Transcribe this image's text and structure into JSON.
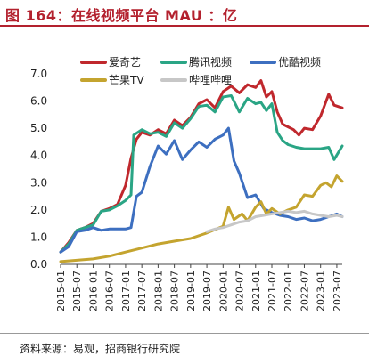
{
  "figure": {
    "title": "图 164：在线视频平台 MAU ：亿",
    "source": "资料来源：易观，招商银行研究院"
  },
  "chart_data": {
    "type": "line",
    "ylim": [
      0,
      7
    ],
    "yticks": [
      "0.0",
      "1.0",
      "2.0",
      "3.0",
      "4.0",
      "5.0",
      "6.0",
      "7.0"
    ],
    "x_start": "2015-01",
    "x_end": "2023-09",
    "xticks": [
      "2015-01",
      "2015-07",
      "2016-01",
      "2016-07",
      "2017-01",
      "2017-07",
      "2018-01",
      "2018-07",
      "2019-01",
      "2019-07",
      "2020-01",
      "2020-07",
      "2021-01",
      "2021-07",
      "2022-01",
      "2022-07",
      "2023-01",
      "2023-07"
    ],
    "legend_position": "top",
    "grid": false,
    "series": [
      {
        "name": "爱奇艺",
        "color": "#c0282d",
        "points": [
          [
            "2015-01",
            0.45
          ],
          [
            "2015-04",
            0.8
          ],
          [
            "2015-07",
            1.25
          ],
          [
            "2015-10",
            1.35
          ],
          [
            "2016-01",
            1.5
          ],
          [
            "2016-04",
            1.95
          ],
          [
            "2016-07",
            2.05
          ],
          [
            "2016-10",
            2.2
          ],
          [
            "2017-01",
            2.9
          ],
          [
            "2017-03",
            3.9
          ],
          [
            "2017-05",
            4.6
          ],
          [
            "2017-07",
            4.85
          ],
          [
            "2017-10",
            4.75
          ],
          [
            "2018-01",
            4.95
          ],
          [
            "2018-04",
            4.8
          ],
          [
            "2018-07",
            5.3
          ],
          [
            "2018-10",
            5.1
          ],
          [
            "2019-01",
            5.4
          ],
          [
            "2019-04",
            5.9
          ],
          [
            "2019-07",
            6.05
          ],
          [
            "2019-10",
            5.75
          ],
          [
            "2020-01",
            6.35
          ],
          [
            "2020-04",
            6.55
          ],
          [
            "2020-07",
            6.3
          ],
          [
            "2020-10",
            6.6
          ],
          [
            "2021-01",
            6.5
          ],
          [
            "2021-03",
            6.75
          ],
          [
            "2021-05",
            6.15
          ],
          [
            "2021-07",
            6.35
          ],
          [
            "2021-09",
            5.6
          ],
          [
            "2021-11",
            5.15
          ],
          [
            "2022-01",
            5.05
          ],
          [
            "2022-03",
            4.95
          ],
          [
            "2022-05",
            4.75
          ],
          [
            "2022-07",
            5.0
          ],
          [
            "2022-10",
            4.95
          ],
          [
            "2023-01",
            5.45
          ],
          [
            "2023-04",
            6.25
          ],
          [
            "2023-06",
            5.85
          ],
          [
            "2023-09",
            5.75
          ]
        ]
      },
      {
        "name": "腾讯视频",
        "color": "#2aa585",
        "points": [
          [
            "2015-01",
            0.45
          ],
          [
            "2015-04",
            0.75
          ],
          [
            "2015-07",
            1.25
          ],
          [
            "2015-10",
            1.35
          ],
          [
            "2016-01",
            1.45
          ],
          [
            "2016-04",
            1.95
          ],
          [
            "2016-07",
            2.0
          ],
          [
            "2016-10",
            2.15
          ],
          [
            "2017-01",
            2.35
          ],
          [
            "2017-03",
            2.55
          ],
          [
            "2017-04",
            4.75
          ],
          [
            "2017-07",
            4.95
          ],
          [
            "2017-10",
            4.8
          ],
          [
            "2018-01",
            4.85
          ],
          [
            "2018-04",
            4.7
          ],
          [
            "2018-07",
            5.2
          ],
          [
            "2018-10",
            5.0
          ],
          [
            "2019-01",
            5.35
          ],
          [
            "2019-04",
            5.8
          ],
          [
            "2019-07",
            5.85
          ],
          [
            "2019-10",
            5.6
          ],
          [
            "2020-01",
            6.15
          ],
          [
            "2020-04",
            6.2
          ],
          [
            "2020-07",
            5.6
          ],
          [
            "2020-10",
            6.1
          ],
          [
            "2021-01",
            5.9
          ],
          [
            "2021-03",
            5.95
          ],
          [
            "2021-05",
            5.65
          ],
          [
            "2021-07",
            5.9
          ],
          [
            "2021-09",
            4.85
          ],
          [
            "2021-11",
            4.55
          ],
          [
            "2022-01",
            4.4
          ],
          [
            "2022-04",
            4.3
          ],
          [
            "2022-07",
            4.25
          ],
          [
            "2022-10",
            4.25
          ],
          [
            "2023-01",
            4.25
          ],
          [
            "2023-04",
            4.3
          ],
          [
            "2023-06",
            3.85
          ],
          [
            "2023-09",
            4.35
          ]
        ]
      },
      {
        "name": "优酷视频",
        "color": "#3d6fc0",
        "points": [
          [
            "2015-01",
            0.45
          ],
          [
            "2015-04",
            0.65
          ],
          [
            "2015-07",
            1.2
          ],
          [
            "2015-10",
            1.25
          ],
          [
            "2016-01",
            1.35
          ],
          [
            "2016-04",
            1.25
          ],
          [
            "2016-07",
            1.3
          ],
          [
            "2016-10",
            1.3
          ],
          [
            "2017-01",
            1.3
          ],
          [
            "2017-03",
            1.35
          ],
          [
            "2017-05",
            2.5
          ],
          [
            "2017-07",
            2.65
          ],
          [
            "2017-10",
            3.6
          ],
          [
            "2018-01",
            4.35
          ],
          [
            "2018-04",
            4.05
          ],
          [
            "2018-07",
            4.55
          ],
          [
            "2018-10",
            3.85
          ],
          [
            "2019-01",
            4.2
          ],
          [
            "2019-04",
            4.5
          ],
          [
            "2019-07",
            4.3
          ],
          [
            "2019-10",
            4.6
          ],
          [
            "2020-01",
            4.75
          ],
          [
            "2020-03",
            5.0
          ],
          [
            "2020-05",
            3.8
          ],
          [
            "2020-07",
            3.35
          ],
          [
            "2020-10",
            2.45
          ],
          [
            "2021-01",
            2.55
          ],
          [
            "2021-04",
            2.05
          ],
          [
            "2021-07",
            1.9
          ],
          [
            "2021-10",
            1.8
          ],
          [
            "2022-01",
            1.75
          ],
          [
            "2022-04",
            1.65
          ],
          [
            "2022-07",
            1.7
          ],
          [
            "2022-10",
            1.6
          ],
          [
            "2023-01",
            1.65
          ],
          [
            "2023-04",
            1.75
          ],
          [
            "2023-07",
            1.85
          ],
          [
            "2023-09",
            1.75
          ]
        ]
      },
      {
        "name": "芒果TV",
        "color": "#c4a42f",
        "points": [
          [
            "2015-01",
            0.1
          ],
          [
            "2015-07",
            0.15
          ],
          [
            "2016-01",
            0.2
          ],
          [
            "2016-07",
            0.3
          ],
          [
            "2017-01",
            0.45
          ],
          [
            "2017-07",
            0.6
          ],
          [
            "2018-01",
            0.75
          ],
          [
            "2018-07",
            0.85
          ],
          [
            "2019-01",
            0.95
          ],
          [
            "2019-07",
            1.15
          ],
          [
            "2020-01",
            1.4
          ],
          [
            "2020-03",
            2.1
          ],
          [
            "2020-05",
            1.65
          ],
          [
            "2020-08",
            1.85
          ],
          [
            "2020-10",
            1.6
          ],
          [
            "2021-01",
            2.1
          ],
          [
            "2021-03",
            2.3
          ],
          [
            "2021-05",
            1.85
          ],
          [
            "2021-07",
            2.05
          ],
          [
            "2021-10",
            1.85
          ],
          [
            "2022-01",
            2.0
          ],
          [
            "2022-04",
            2.1
          ],
          [
            "2022-07",
            2.55
          ],
          [
            "2022-10",
            2.5
          ],
          [
            "2023-01",
            2.9
          ],
          [
            "2023-03",
            3.0
          ],
          [
            "2023-05",
            2.85
          ],
          [
            "2023-07",
            3.25
          ],
          [
            "2023-09",
            3.05
          ]
        ]
      },
      {
        "name": "哔哩哔哩",
        "color": "#c7c7c7",
        "points": [
          [
            "2019-07",
            1.2
          ],
          [
            "2019-10",
            1.3
          ],
          [
            "2020-01",
            1.35
          ],
          [
            "2020-04",
            1.45
          ],
          [
            "2020-07",
            1.55
          ],
          [
            "2020-10",
            1.6
          ],
          [
            "2021-01",
            1.75
          ],
          [
            "2021-04",
            1.8
          ],
          [
            "2021-07",
            1.85
          ],
          [
            "2021-10",
            1.9
          ],
          [
            "2022-01",
            1.95
          ],
          [
            "2022-04",
            1.9
          ],
          [
            "2022-07",
            1.95
          ],
          [
            "2022-10",
            1.85
          ],
          [
            "2023-01",
            1.8
          ],
          [
            "2023-04",
            1.75
          ],
          [
            "2023-07",
            1.8
          ],
          [
            "2023-09",
            1.75
          ]
        ]
      }
    ]
  }
}
